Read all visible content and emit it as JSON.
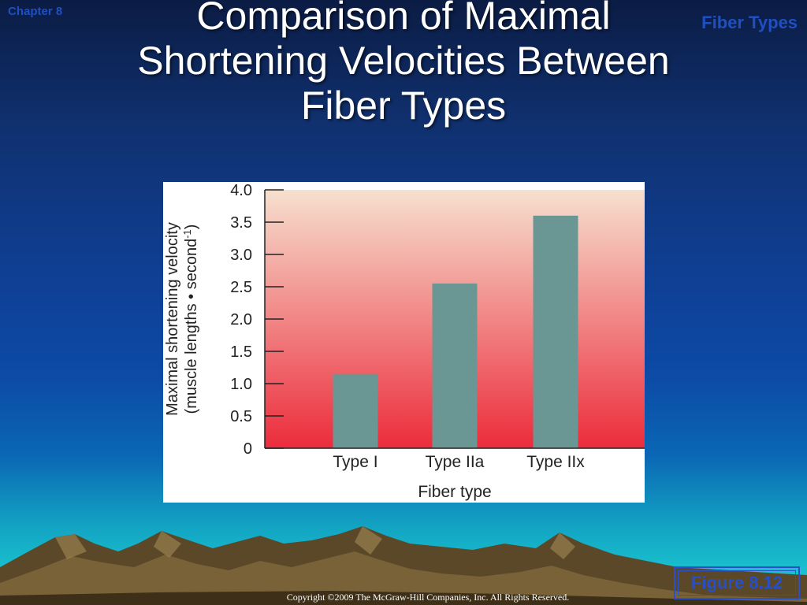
{
  "slide": {
    "chapter_label": "Chapter 8",
    "section_label": "Fiber Types",
    "title_line1": "Comparison of Maximal",
    "title_line2": "Shortening Velocities Between",
    "title_line3": "Fiber Types",
    "figure_label": "Figure 8.12",
    "copyright": "Copyright ©2009 The McGraw-Hill Companies, Inc. All Rights Reserved."
  },
  "colors": {
    "bar": "#6a9793",
    "gradient_top": "#f6e0cf",
    "gradient_bottom": "#ec2c3c"
  },
  "chart_data": {
    "type": "bar",
    "categories": [
      "Type I",
      "Type IIa",
      "Type IIx"
    ],
    "values": [
      1.15,
      2.55,
      3.6
    ],
    "xlabel": "Fiber type",
    "ylabel_line1": "Maximal shortening velocity",
    "ylabel_line2": "(muscle lengths • second",
    "ylabel_sup": "-1",
    "ylabel_close": ")",
    "ylim": [
      0,
      4.0
    ],
    "yticks": [
      "0",
      "0.5",
      "1.0",
      "1.5",
      "2.0",
      "2.5",
      "3.0",
      "3.5",
      "4.0"
    ],
    "grid": false
  }
}
